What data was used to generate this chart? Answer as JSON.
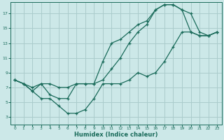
{
  "xlabel": "Humidex (Indice chaleur)",
  "xlim": [
    -0.5,
    23.5
  ],
  "ylim": [
    2,
    18.5
  ],
  "xticks": [
    0,
    1,
    2,
    3,
    4,
    5,
    6,
    7,
    8,
    9,
    10,
    11,
    12,
    13,
    14,
    15,
    16,
    17,
    18,
    19,
    20,
    21,
    22,
    23
  ],
  "yticks": [
    3,
    5,
    7,
    9,
    11,
    13,
    15,
    17
  ],
  "bg_color": "#cce8e8",
  "grid_color": "#aacccc",
  "line_color": "#1a6b5a",
  "series": [
    {
      "x": [
        0,
        1,
        2,
        3,
        4,
        5,
        6,
        7,
        8,
        9,
        10,
        11,
        12,
        13,
        14,
        15,
        16,
        17,
        18,
        19,
        20,
        21,
        22,
        23
      ],
      "y": [
        8,
        7.5,
        7,
        7.5,
        7.5,
        7,
        7,
        7.5,
        7.5,
        7.5,
        8,
        9.5,
        11,
        13,
        14.5,
        15.5,
        17.5,
        18.2,
        18.2,
        17.5,
        17,
        14.5,
        14,
        14.5
      ]
    },
    {
      "x": [
        0,
        1,
        2,
        3,
        4,
        5,
        6,
        7,
        8,
        9,
        10,
        11,
        12,
        13,
        14,
        15,
        16,
        17,
        18,
        19,
        20,
        21,
        22,
        23
      ],
      "y": [
        8,
        7.5,
        6.5,
        5.5,
        5.5,
        4.5,
        3.5,
        3.5,
        4,
        5.5,
        7.5,
        7.5,
        7.5,
        8,
        9,
        8.5,
        9,
        10.5,
        12.5,
        14.5,
        14.5,
        14,
        14,
        14.5
      ]
    },
    {
      "x": [
        0,
        1,
        2,
        3,
        4,
        5,
        6,
        7,
        8,
        9,
        10,
        11,
        12,
        13,
        14,
        15,
        16,
        17,
        18,
        19,
        20,
        21,
        22,
        23
      ],
      "y": [
        8,
        7.5,
        6.5,
        7.5,
        6,
        5.5,
        5.5,
        7.5,
        7.5,
        7.5,
        10.5,
        13,
        13.5,
        14.5,
        15.5,
        16,
        17.5,
        18.2,
        18.2,
        17.5,
        14.5,
        14,
        14,
        14.5
      ]
    }
  ]
}
